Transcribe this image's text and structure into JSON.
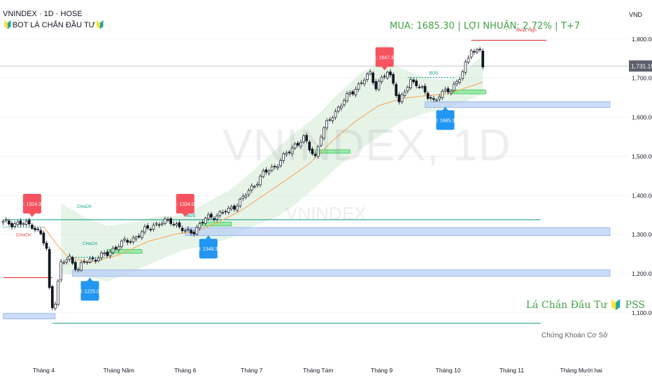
{
  "header": {
    "symbol_line": "VNINDEX · 1D · HOSE",
    "indicator_line": "🔰BOT LÁ CHẮN ĐẦU TƯ🔰",
    "currency": "VND"
  },
  "signal_text": "MUA: 1685.30 | LỢI NHUẬN: 2.72% | T+7",
  "watermark": {
    "symbol": "VNINDEX, 1D",
    "name": "VNINDEX"
  },
  "branding": {
    "title": "Lá Chắn Đầu Tư 🔰 PSS",
    "subtitle": "Chứng Khoán Cơ Sở"
  },
  "chart_data": {
    "type": "candlestick",
    "title": "VNINDEX · 1D · HOSE",
    "ylim": [
      1060,
      1850
    ],
    "y_ticks": [
      1100,
      1200,
      1300,
      1400,
      1500,
      1600,
      1700,
      1800
    ],
    "y_tick_labels": [
      "1,100.00",
      "1,200.00",
      "1,300.00",
      "1,400.00",
      "1,500.00",
      "1,600.00",
      "1,700.00",
      "1,800.00"
    ],
    "x_labels": [
      "Tháng 4",
      "Tháng Năm",
      "Tháng 6",
      "Tháng 7",
      "Tháng Tám",
      "Tháng 9",
      "Tháng 10",
      "Tháng 11",
      "Tháng Mười hai"
    ],
    "x_label_bar_index": [
      14,
      40,
      63,
      86,
      109,
      131,
      154,
      176,
      200
    ],
    "last_price": 1731.19,
    "last_price_label": "1,731.19",
    "close_path": [
      [
        0,
        1330
      ],
      [
        6,
        1328
      ],
      [
        10,
        1325
      ],
      [
        13,
        1300
      ],
      [
        15,
        1260
      ],
      [
        16,
        1160
      ],
      [
        17,
        1120
      ],
      [
        18,
        1130
      ],
      [
        20,
        1225
      ],
      [
        23,
        1240
      ],
      [
        26,
        1210
      ],
      [
        28,
        1230
      ],
      [
        32,
        1240
      ],
      [
        36,
        1250
      ],
      [
        40,
        1275
      ],
      [
        44,
        1285
      ],
      [
        48,
        1305
      ],
      [
        52,
        1325
      ],
      [
        55,
        1330
      ],
      [
        58,
        1335
      ],
      [
        61,
        1320
      ],
      [
        63,
        1305
      ],
      [
        66,
        1310
      ],
      [
        70,
        1340
      ],
      [
        74,
        1350
      ],
      [
        78,
        1362
      ],
      [
        82,
        1385
      ],
      [
        86,
        1420
      ],
      [
        90,
        1455
      ],
      [
        94,
        1475
      ],
      [
        98,
        1505
      ],
      [
        101,
        1530
      ],
      [
        104,
        1545
      ],
      [
        106,
        1520
      ],
      [
        108,
        1500
      ],
      [
        110,
        1555
      ],
      [
        113,
        1595
      ],
      [
        116,
        1625
      ],
      [
        120,
        1660
      ],
      [
        124,
        1690
      ],
      [
        127,
        1710
      ],
      [
        129,
        1680
      ],
      [
        131,
        1700
      ],
      [
        133,
        1712
      ],
      [
        135,
        1690
      ],
      [
        137,
        1640
      ],
      [
        139,
        1665
      ],
      [
        141,
        1690
      ],
      [
        143,
        1690
      ],
      [
        145,
        1672
      ],
      [
        147,
        1650
      ],
      [
        149,
        1642
      ],
      [
        151,
        1660
      ],
      [
        153,
        1664
      ],
      [
        155,
        1668
      ],
      [
        157,
        1695
      ],
      [
        159,
        1715
      ],
      [
        161,
        1750
      ],
      [
        162,
        1775
      ],
      [
        163,
        1765
      ],
      [
        165,
        1780
      ],
      [
        166,
        1731
      ]
    ],
    "moving_average_path": [
      [
        14,
        1320
      ],
      [
        18,
        1280
      ],
      [
        22,
        1245
      ],
      [
        30,
        1228
      ],
      [
        40,
        1248
      ],
      [
        50,
        1282
      ],
      [
        60,
        1302
      ],
      [
        66,
        1306
      ],
      [
        74,
        1330
      ],
      [
        82,
        1360
      ],
      [
        90,
        1400
      ],
      [
        98,
        1440
      ],
      [
        106,
        1482
      ],
      [
        114,
        1540
      ],
      [
        122,
        1590
      ],
      [
        130,
        1630
      ],
      [
        138,
        1648
      ],
      [
        146,
        1655
      ],
      [
        154,
        1660
      ],
      [
        160,
        1675
      ],
      [
        166,
        1690
      ]
    ],
    "channel_upper_path": [
      [
        20,
        1380
      ],
      [
        28,
        1345
      ],
      [
        36,
        1322
      ],
      [
        44,
        1330
      ],
      [
        52,
        1345
      ],
      [
        62,
        1350
      ],
      [
        70,
        1380
      ],
      [
        78,
        1412
      ],
      [
        86,
        1460
      ],
      [
        94,
        1515
      ],
      [
        100,
        1555
      ],
      [
        108,
        1600
      ],
      [
        116,
        1660
      ],
      [
        124,
        1715
      ],
      [
        132,
        1740
      ],
      [
        138,
        1725
      ],
      [
        146,
        1700
      ],
      [
        154,
        1695
      ],
      [
        160,
        1720
      ],
      [
        166,
        1760
      ]
    ],
    "channel_lower_path": [
      [
        20,
        1200
      ],
      [
        28,
        1195
      ],
      [
        36,
        1180
      ],
      [
        44,
        1202
      ],
      [
        52,
        1228
      ],
      [
        62,
        1260
      ],
      [
        70,
        1270
      ],
      [
        78,
        1290
      ],
      [
        86,
        1320
      ],
      [
        94,
        1342
      ],
      [
        100,
        1370
      ],
      [
        108,
        1420
      ],
      [
        116,
        1475
      ],
      [
        124,
        1520
      ],
      [
        132,
        1560
      ],
      [
        138,
        1590
      ],
      [
        146,
        1610
      ],
      [
        154,
        1625
      ],
      [
        160,
        1640
      ],
      [
        166,
        1660
      ]
    ],
    "zones": [
      {
        "from_bar": 0,
        "to_bar": 18,
        "low": 1084,
        "high": 1098
      },
      {
        "from_bar": 63,
        "to_bar": 210,
        "low": 1297,
        "high": 1318
      },
      {
        "from_bar": 24,
        "to_bar": 210,
        "low": 1193,
        "high": 1210
      },
      {
        "from_bar": 146,
        "to_bar": 210,
        "low": 1625,
        "high": 1640
      }
    ],
    "green_boxes": [
      {
        "from_bar": 36,
        "to_bar": 48,
        "low": 1252,
        "high": 1262
      },
      {
        "from_bar": 68,
        "to_bar": 79,
        "low": 1322,
        "high": 1332
      },
      {
        "from_bar": 108,
        "to_bar": 120,
        "low": 1508,
        "high": 1517
      },
      {
        "from_bar": 155,
        "to_bar": 167,
        "low": 1660,
        "high": 1670
      }
    ],
    "lines": [
      {
        "from_bar": 0,
        "to_bar": 186,
        "y": 1338,
        "color": "#089981"
      },
      {
        "from_bar": 17,
        "to_bar": 186,
        "y": 1073,
        "color": "#089981"
      },
      {
        "from_bar": 0,
        "to_bar": 17,
        "y": 1190,
        "color": "#e53935"
      },
      {
        "from_bar": 162,
        "to_bar": 188,
        "y": 1797,
        "color": "#e53935"
      }
    ],
    "dotted_lines": [
      {
        "from_bar": 0,
        "to_bar": 14,
        "y": 1319
      },
      {
        "from_bar": 22,
        "to_bar": 36,
        "y": 1242
      },
      {
        "from_bar": 55,
        "to_bar": 72,
        "y": 1338
      },
      {
        "from_bar": 140,
        "to_bar": 156,
        "y": 1702
      }
    ],
    "markers": [
      {
        "kind": "sell",
        "text": "B: 1324.36",
        "bar": 10,
        "y": 1345
      },
      {
        "kind": "sell",
        "text": "B: 1324.05",
        "bar": 63,
        "y": 1345
      },
      {
        "kind": "sell",
        "text": "B: 1647.37",
        "bar": 132,
        "y": 1720
      },
      {
        "kind": "buy",
        "text": "M: 1225.08",
        "bar": 30,
        "y": 1190
      },
      {
        "kind": "buy",
        "text": "M: 1349.35",
        "bar": 71,
        "y": 1298
      },
      {
        "kind": "buy",
        "text": "M: 1685.30",
        "bar": 153,
        "y": 1627
      }
    ],
    "annotations": [
      {
        "text": "CHoCH",
        "bar": 28,
        "y": 1368,
        "color": "#089981"
      },
      {
        "text": "CHoCH",
        "bar": 30,
        "y": 1273,
        "color": "#089981"
      },
      {
        "text": "CHoCH",
        "bar": 7,
        "y": 1296,
        "color": "#e53935"
      },
      {
        "text": "BOS",
        "bar": 65,
        "y": 1345,
        "color": "#089981"
      },
      {
        "text": "BOS",
        "bar": 149,
        "y": 1709,
        "color": "#089981"
      },
      {
        "text": "Weak High",
        "bar": 181,
        "y": 1819,
        "color": "#e53935"
      }
    ]
  },
  "colors": {
    "up": "#089981",
    "down": "#131722",
    "ma": "#f5a962",
    "channel": "#c8e6c9",
    "zone": "#bbd0f5",
    "buy_marker": "#2196f3",
    "sell_marker": "#f7525f",
    "signal_text": "#43a047"
  }
}
